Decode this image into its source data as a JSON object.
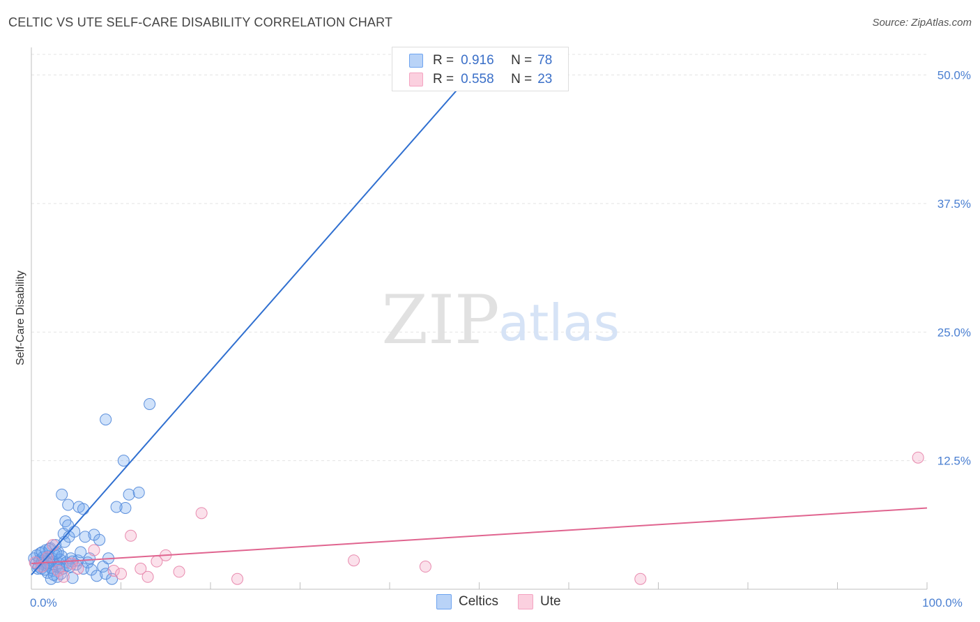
{
  "title": "CELTIC VS UTE SELF-CARE DISABILITY CORRELATION CHART",
  "source": "Source: ZipAtlas.com",
  "watermark": {
    "zip": "ZIP",
    "atlas": "atlas"
  },
  "legend": {
    "rows": [
      {
        "r_label": "R =",
        "r_value": "0.916",
        "n_label": "N =",
        "n_value": "78"
      },
      {
        "r_label": "R =",
        "r_value": "0.558",
        "n_label": "N =",
        "n_value": "23"
      }
    ]
  },
  "chart_data": {
    "type": "scatter",
    "title": "CELTIC VS UTE SELF-CARE DISABILITY CORRELATION CHART",
    "xlabel": "",
    "ylabel": "Self-Care Disability",
    "xlim": [
      0,
      100
    ],
    "ylim": [
      0,
      52
    ],
    "y_ticks": [
      {
        "value": 12.5,
        "label": "12.5%"
      },
      {
        "value": 25.0,
        "label": "25.0%"
      },
      {
        "value": 37.5,
        "label": "37.5%"
      },
      {
        "value": 50.0,
        "label": "50.0%"
      }
    ],
    "x_ticks": [
      {
        "value": 0,
        "label": "0.0%"
      },
      {
        "value": 100,
        "label": "100.0%"
      }
    ],
    "series": [
      {
        "name": "Celtics",
        "color": "#6ea4f0",
        "stroke": "#5b8fdc",
        "trend": {
          "x0": 0,
          "y0": 1.4,
          "x1": 50,
          "y1": 51.0,
          "color": "#2f6fd0"
        },
        "points": [
          [
            0.3,
            3.0
          ],
          [
            0.5,
            2.5
          ],
          [
            0.6,
            3.3
          ],
          [
            0.8,
            2.2
          ],
          [
            0.9,
            2.8
          ],
          [
            1.0,
            3.5
          ],
          [
            1.1,
            2.0
          ],
          [
            1.2,
            2.7
          ],
          [
            1.3,
            3.1
          ],
          [
            1.4,
            2.4
          ],
          [
            1.5,
            2.9
          ],
          [
            1.6,
            3.8
          ],
          [
            1.7,
            2.3
          ],
          [
            1.8,
            1.6
          ],
          [
            1.9,
            3.2
          ],
          [
            2.0,
            2.6
          ],
          [
            2.1,
            4.0
          ],
          [
            2.2,
            2.1
          ],
          [
            2.3,
            3.0
          ],
          [
            2.4,
            1.8
          ],
          [
            2.5,
            2.7
          ],
          [
            2.6,
            3.4
          ],
          [
            2.7,
            4.3
          ],
          [
            2.8,
            2.2
          ],
          [
            2.9,
            1.2
          ],
          [
            3.0,
            3.6
          ],
          [
            3.1,
            2.5
          ],
          [
            3.2,
            2.9
          ],
          [
            3.3,
            1.5
          ],
          [
            3.4,
            3.2
          ],
          [
            3.5,
            2.0
          ],
          [
            3.6,
            5.4
          ],
          [
            3.7,
            4.6
          ],
          [
            3.8,
            6.6
          ],
          [
            3.9,
            2.6
          ],
          [
            4.0,
            2.3
          ],
          [
            4.2,
            5.1
          ],
          [
            4.4,
            3.0
          ],
          [
            4.6,
            1.1
          ],
          [
            4.8,
            5.6
          ],
          [
            5.0,
            2.4
          ],
          [
            5.2,
            2.8
          ],
          [
            5.5,
            3.6
          ],
          [
            5.8,
            2.0
          ],
          [
            6.0,
            5.1
          ],
          [
            6.3,
            2.6
          ],
          [
            6.7,
            1.9
          ],
          [
            7.0,
            5.3
          ],
          [
            7.3,
            1.3
          ],
          [
            7.6,
            4.8
          ],
          [
            8.0,
            2.2
          ],
          [
            8.3,
            1.5
          ],
          [
            8.6,
            3.0
          ],
          [
            9.0,
            1.0
          ],
          [
            3.4,
            9.2
          ],
          [
            4.1,
            8.2
          ],
          [
            4.1,
            6.2
          ],
          [
            5.3,
            8.0
          ],
          [
            5.8,
            7.8
          ],
          [
            4.6,
            2.7
          ],
          [
            2.2,
            1.0
          ],
          [
            1.5,
            1.9
          ],
          [
            2.8,
            3.5
          ],
          [
            3.1,
            2.1
          ],
          [
            0.7,
            2.0
          ],
          [
            1.8,
            2.5
          ],
          [
            1.2,
            3.6
          ],
          [
            2.0,
            3.9
          ],
          [
            2.5,
            1.4
          ],
          [
            4.3,
            2.2
          ],
          [
            8.3,
            16.5
          ],
          [
            10.3,
            12.5
          ],
          [
            10.5,
            7.9
          ],
          [
            10.9,
            9.2
          ],
          [
            12.0,
            9.4
          ],
          [
            13.2,
            18.0
          ],
          [
            9.5,
            8.0
          ],
          [
            6.5,
            3.0
          ]
        ]
      },
      {
        "name": "Ute",
        "color": "#f4a3c1",
        "stroke": "#e88aae",
        "trend": {
          "x0": 0,
          "y0": 2.5,
          "x1": 100,
          "y1": 7.9,
          "color": "#e0648f"
        },
        "points": [
          [
            0.4,
            2.6
          ],
          [
            1.2,
            2.2
          ],
          [
            1.8,
            3.1
          ],
          [
            2.4,
            4.3
          ],
          [
            3.0,
            1.8
          ],
          [
            3.6,
            1.2
          ],
          [
            4.5,
            2.5
          ],
          [
            5.2,
            2.0
          ],
          [
            7.0,
            3.8
          ],
          [
            9.2,
            1.8
          ],
          [
            10.0,
            1.5
          ],
          [
            11.1,
            5.2
          ],
          [
            12.2,
            2.0
          ],
          [
            13.0,
            1.2
          ],
          [
            14.0,
            2.7
          ],
          [
            15.0,
            3.3
          ],
          [
            16.5,
            1.7
          ],
          [
            19.0,
            7.4
          ],
          [
            23.0,
            1.0
          ],
          [
            36.0,
            2.8
          ],
          [
            44.0,
            2.2
          ],
          [
            68.0,
            1.0
          ],
          [
            99.0,
            12.8
          ]
        ]
      }
    ]
  }
}
